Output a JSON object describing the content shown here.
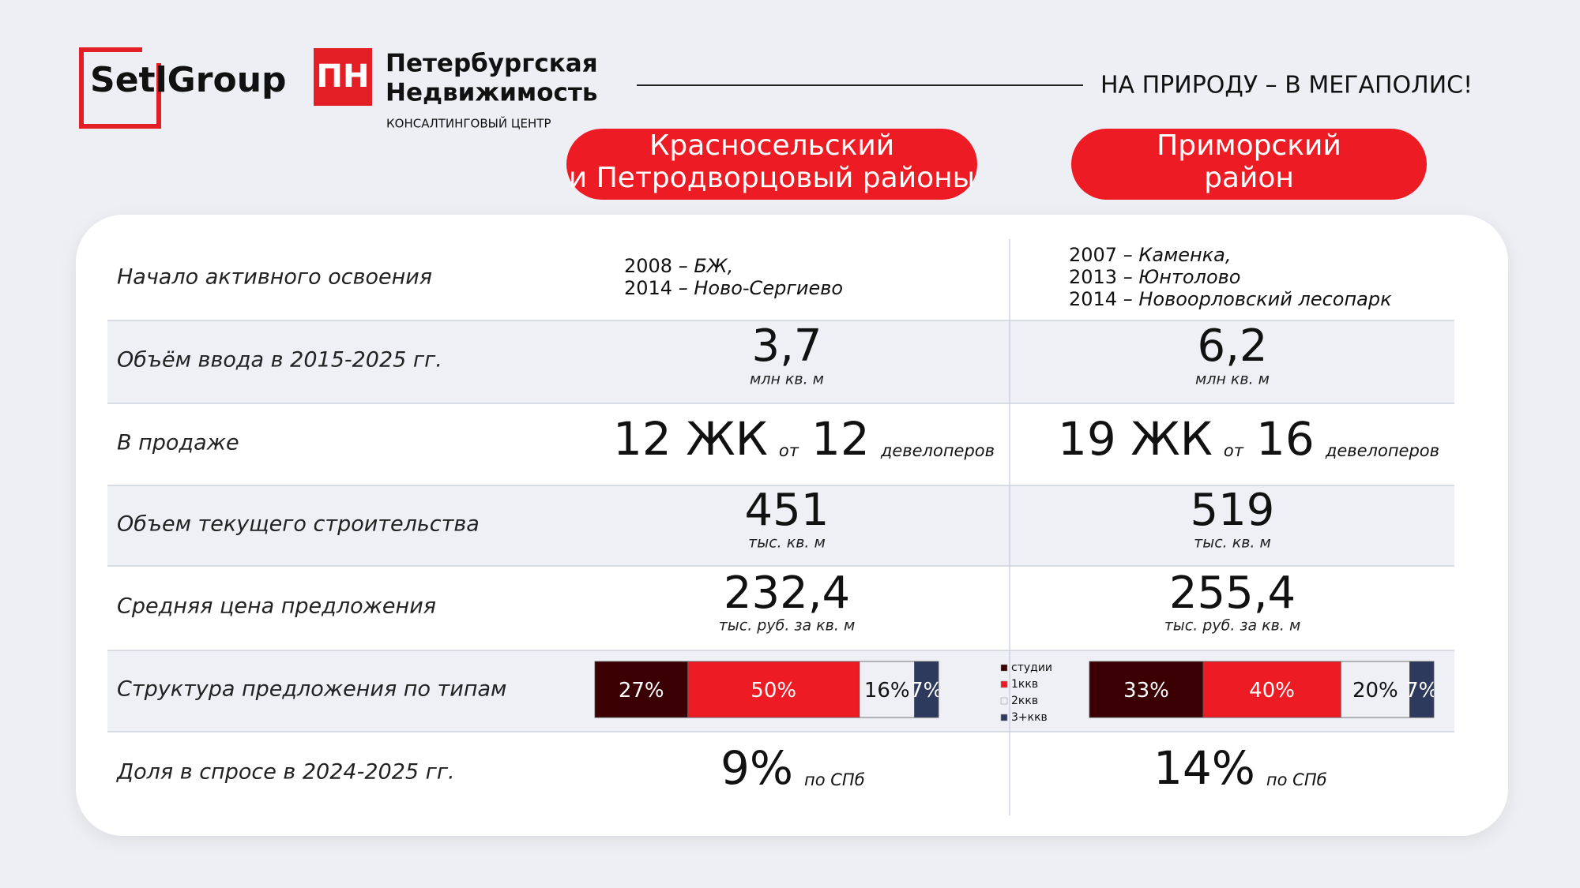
{
  "header": {
    "logo1": "SetlGroup",
    "logo2_line1": "Петербургская",
    "logo2_line2": "Недвижимость",
    "logo2_sub": "КОНСАЛТИНГОВЫЙ ЦЕНТР",
    "logo2_mark": "ПН",
    "tagline": "НА ПРИРОДУ – В МЕГАПОЛИС!"
  },
  "columns": [
    {
      "lines": [
        "Красносельский",
        "и Петродворцовый районы"
      ]
    },
    {
      "lines": [
        "Приморский",
        "район"
      ]
    }
  ],
  "rows": {
    "start": {
      "label": "Начало активного освоения",
      "cells": [
        [
          {
            "year": "2008",
            "text": " – БЖ,"
          },
          {
            "year": "2014",
            "text": " – Ново-Сергиево"
          }
        ],
        [
          {
            "year": "2007",
            "text": " – Каменка,"
          },
          {
            "year": "2013",
            "text": " – Юнтолово"
          },
          {
            "year": "2014",
            "text": " – Новоорловский лесопарк"
          }
        ]
      ]
    },
    "volume": {
      "label": "Объём ввода в 2015-2025 гг.",
      "cells": [
        {
          "value": "3,7",
          "unit": "млн кв. м"
        },
        {
          "value": "6,2",
          "unit": "млн кв. м"
        }
      ]
    },
    "sale": {
      "label": "В продаже",
      "cells": [
        {
          "complexes": "12 ЖК",
          "from": "от",
          "developers": "12",
          "dev_unit": "девелоперов"
        },
        {
          "complexes": "19 ЖК",
          "from": "от",
          "developers": "16",
          "dev_unit": "девелоперов"
        }
      ]
    },
    "construction": {
      "label": "Объем текущего строительства",
      "cells": [
        {
          "value": "451",
          "unit": "тыс. кв. м"
        },
        {
          "value": "519",
          "unit": "тыс. кв. м"
        }
      ]
    },
    "price": {
      "label": "Средняя цена предложения",
      "cells": [
        {
          "value": "232,4",
          "unit": "тыс. руб. за кв. м"
        },
        {
          "value": "255,4",
          "unit": "тыс. руб. за кв. м"
        }
      ]
    },
    "structure": {
      "label": "Структура предложения по типам",
      "legend": [
        "студии",
        "1ккв",
        "2ккв",
        "3+ккв"
      ],
      "colors": [
        "#3a0003",
        "#ed1c24",
        "#eef0f5",
        "#2d3a5e"
      ],
      "bars": [
        {
          "values": [
            27,
            50,
            16,
            7
          ],
          "value_labels": [
            "27%",
            "50%",
            "16%",
            "7%"
          ]
        },
        {
          "values": [
            33,
            40,
            20,
            7
          ],
          "value_labels": [
            "33%",
            "40%",
            "20%",
            "7%"
          ]
        }
      ]
    },
    "share": {
      "label": "Доля в спросе в 2024-2025 гг.",
      "cells": [
        {
          "value": "9%",
          "unit": "по СПб"
        },
        {
          "value": "14%",
          "unit": "по СПб"
        }
      ]
    }
  }
}
